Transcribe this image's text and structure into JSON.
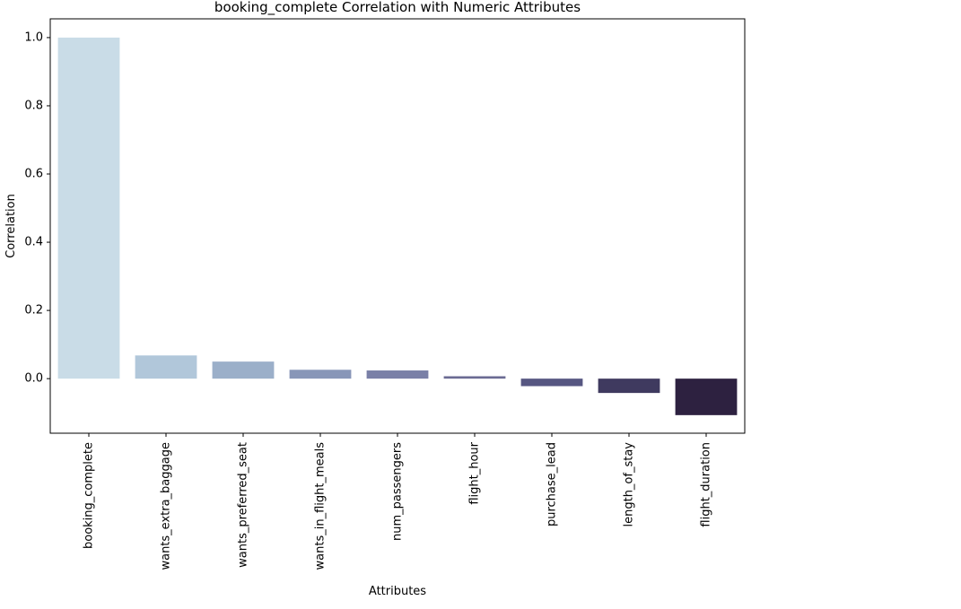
{
  "chart_data": {
    "type": "bar",
    "title": "booking_complete Correlation with Numeric Attributes",
    "xlabel": "Attributes",
    "ylabel": "Correlation",
    "categories": [
      "booking_complete",
      "wants_extra_baggage",
      "wants_preferred_seat",
      "wants_in_flight_meals",
      "num_passengers",
      "flight_hour",
      "purchase_lead",
      "length_of_stay",
      "flight_duration"
    ],
    "values": [
      1.0,
      0.068,
      0.05,
      0.026,
      0.024,
      0.007,
      -0.022,
      -0.042,
      -0.107
    ],
    "colors": [
      "#c9dce7",
      "#b1c7da",
      "#9bafc9",
      "#8896b8",
      "#7a80a7",
      "#6b6b93",
      "#565681",
      "#3f3a5f",
      "#2d2140"
    ],
    "ylim": [
      -0.16,
      1.055
    ],
    "yticks": [
      0.0,
      0.2,
      0.4,
      0.6,
      0.8,
      1.0
    ],
    "ytick_labels": [
      "0.0",
      "0.2",
      "0.4",
      "0.6",
      "0.8",
      "1.0"
    ],
    "grid": false
  }
}
